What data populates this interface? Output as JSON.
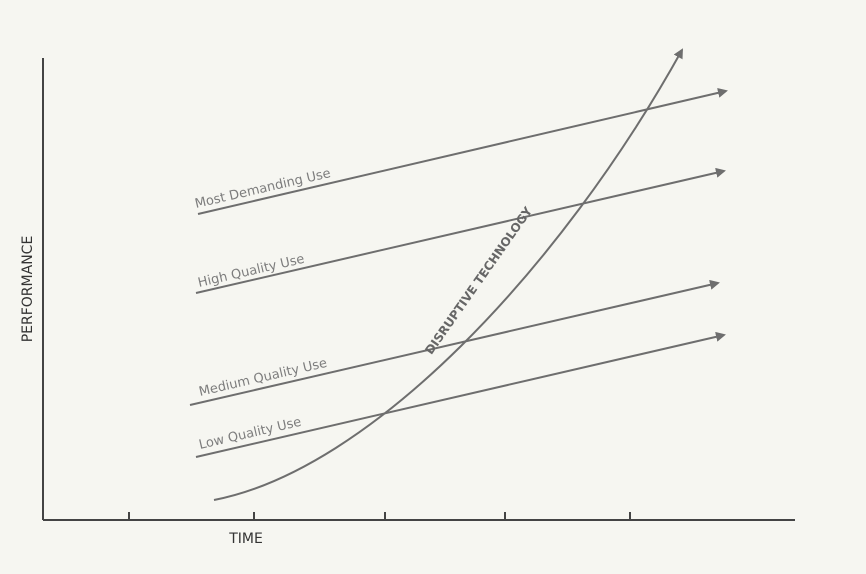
{
  "axes": {
    "y_label": "PERFORMANCE",
    "x_label": "TIME"
  },
  "lines": [
    {
      "label": "Most Demanding Use"
    },
    {
      "label": "High Quality Use"
    },
    {
      "label": "Medium Quality Use"
    },
    {
      "label": "Low Quality Use"
    }
  ],
  "curve": {
    "label": "DISRUPTIVE TECHNOLOGY"
  }
}
